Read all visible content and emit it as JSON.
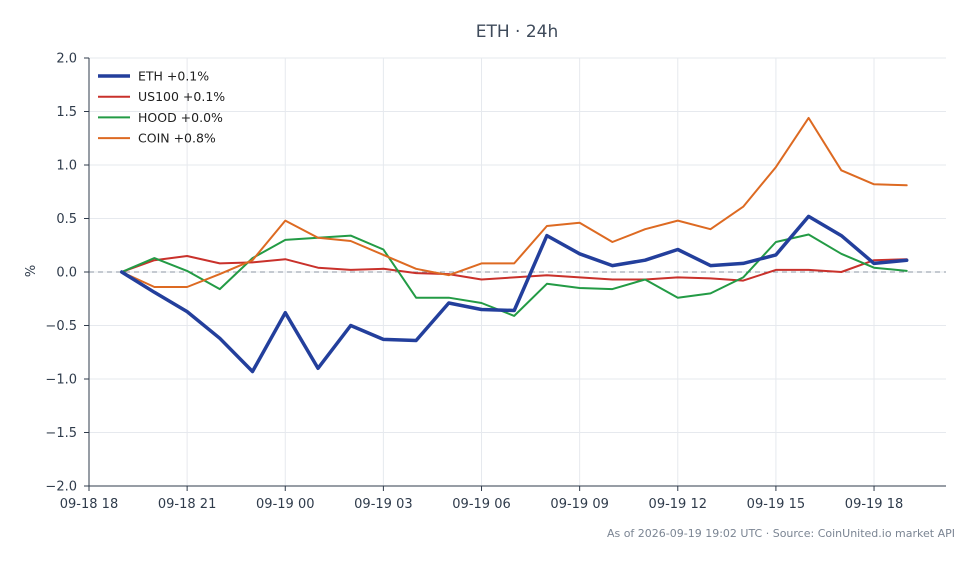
{
  "chart_data": {
    "type": "line",
    "title": "ETH · 24h",
    "ylabel": "%",
    "xlabel": "",
    "ylim": [
      -2.0,
      2.0
    ],
    "y_ticks": [
      "2.0",
      "1.5",
      "1.0",
      "0.5",
      "0.0",
      "−0.5",
      "−1.0",
      "−1.5",
      "−2.0"
    ],
    "y_tick_values": [
      2.0,
      1.5,
      1.0,
      0.5,
      0.0,
      -0.5,
      -1.0,
      -1.5,
      -2.0
    ],
    "x_tick_labels": [
      "09-18 18",
      "09-18 21",
      "09-19 00",
      "09-19 03",
      "09-19 06",
      "09-19 09",
      "09-19 12",
      "09-19 15",
      "09-19 18"
    ],
    "x_tick_hours": [
      18,
      21,
      24,
      27,
      30,
      33,
      36,
      39,
      42
    ],
    "x_range_hours": [
      18,
      44.2
    ],
    "x_hours": [
      19,
      20,
      21,
      22,
      23,
      24,
      25,
      26,
      27,
      28,
      29,
      30,
      31,
      32,
      33,
      34,
      35,
      36,
      37,
      38,
      39,
      40,
      41,
      42,
      43
    ],
    "grid": true,
    "zero_line": "dashed",
    "legend_position": "top-left",
    "series": [
      {
        "name": "ETH +0.1%",
        "color": "#233f9c",
        "width": 3.5,
        "values": [
          0.0,
          -0.19,
          -0.37,
          -0.62,
          -0.93,
          -0.38,
          -0.9,
          -0.5,
          -0.63,
          -0.64,
          -0.29,
          -0.35,
          -0.36,
          0.34,
          0.17,
          0.06,
          0.11,
          0.21,
          0.06,
          0.08,
          0.16,
          0.52,
          0.34,
          0.08,
          0.11
        ]
      },
      {
        "name": "US100 +0.1%",
        "color": "#c9312b",
        "width": 2,
        "values": [
          0.0,
          0.11,
          0.15,
          0.08,
          0.09,
          0.12,
          0.04,
          0.02,
          0.03,
          -0.01,
          -0.02,
          -0.07,
          -0.05,
          -0.03,
          -0.05,
          -0.07,
          -0.07,
          -0.05,
          -0.06,
          -0.08,
          0.02,
          0.02,
          0.0,
          0.11,
          0.12
        ]
      },
      {
        "name": "HOOD +0.0%",
        "color": "#239b45",
        "width": 2,
        "values": [
          0.0,
          0.13,
          0.01,
          -0.16,
          0.13,
          0.3,
          0.32,
          0.34,
          0.21,
          -0.24,
          -0.24,
          -0.29,
          -0.41,
          -0.11,
          -0.15,
          -0.16,
          -0.07,
          -0.24,
          -0.2,
          -0.05,
          0.28,
          0.35,
          0.17,
          0.04,
          0.01
        ]
      },
      {
        "name": "COIN +0.8%",
        "color": "#dd6a22",
        "width": 2,
        "values": [
          0.0,
          -0.14,
          -0.14,
          -0.02,
          0.11,
          0.48,
          0.32,
          0.29,
          0.16,
          0.03,
          -0.03,
          0.08,
          0.08,
          0.43,
          0.46,
          0.28,
          0.4,
          0.48,
          0.4,
          0.61,
          0.98,
          1.44,
          0.95,
          0.82,
          0.81
        ]
      }
    ]
  },
  "footer": {
    "timestamp": "As of 2026-09-19 19:02 UTC",
    "separator": "·",
    "source": "Source: CoinUnited.io market API"
  }
}
